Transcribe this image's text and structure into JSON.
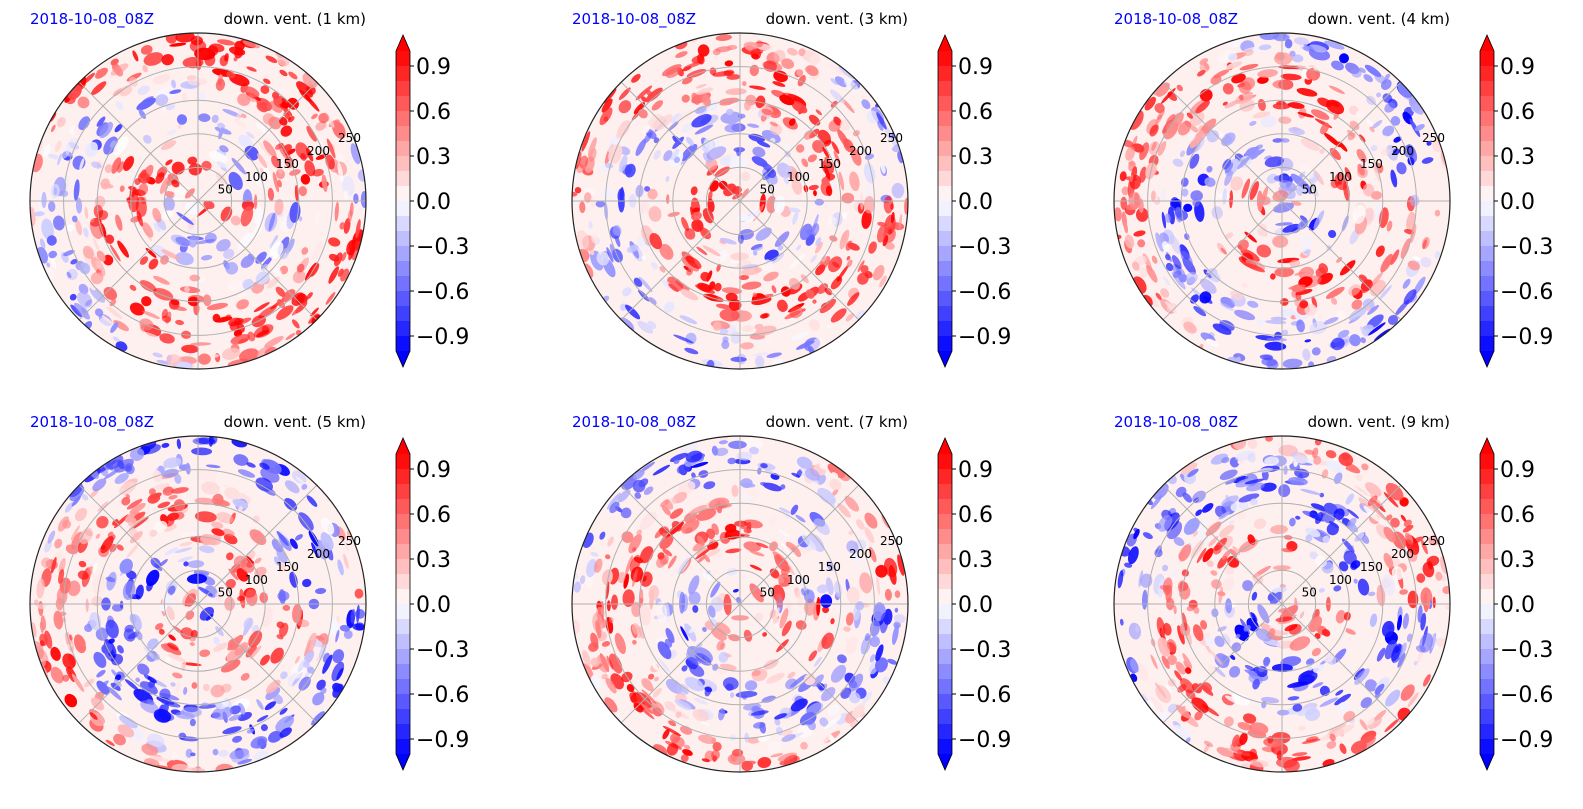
{
  "chart_data": [
    {
      "type": "heatmap",
      "date_label": "2018-10-08_08Z",
      "variable_label": "down. vent. (1 km)",
      "radial_ticks": [
        "50",
        "100",
        "150",
        "200",
        "250"
      ],
      "colorbar_ticks": [
        "0.9",
        "0.6",
        "0.3",
        "0.0",
        "−0.3",
        "−0.6",
        "−0.9"
      ],
      "colorbar_range": [
        -1.0,
        1.0
      ],
      "colormap": "bwr",
      "colorbar_extend": "both"
    },
    {
      "type": "heatmap",
      "date_label": "2018-10-08_08Z",
      "variable_label": "down. vent. (3 km)",
      "radial_ticks": [
        "50",
        "100",
        "150",
        "200",
        "250"
      ],
      "colorbar_ticks": [
        "0.9",
        "0.6",
        "0.3",
        "0.0",
        "−0.3",
        "−0.6",
        "−0.9"
      ],
      "colorbar_range": [
        -1.0,
        1.0
      ],
      "colormap": "bwr",
      "colorbar_extend": "both"
    },
    {
      "type": "heatmap",
      "date_label": "2018-10-08_08Z",
      "variable_label": "down. vent. (4 km)",
      "radial_ticks": [
        "50",
        "100",
        "150",
        "200",
        "250"
      ],
      "colorbar_ticks": [
        "0.9",
        "0.6",
        "0.3",
        "0.0",
        "−0.3",
        "−0.6",
        "−0.9"
      ],
      "colorbar_range": [
        -1.0,
        1.0
      ],
      "colormap": "bwr",
      "colorbar_extend": "both"
    },
    {
      "type": "heatmap",
      "date_label": "2018-10-08_08Z",
      "variable_label": "down. vent. (5 km)",
      "radial_ticks": [
        "50",
        "100",
        "150",
        "200",
        "250"
      ],
      "colorbar_ticks": [
        "0.9",
        "0.6",
        "0.3",
        "0.0",
        "−0.3",
        "−0.6",
        "−0.9"
      ],
      "colorbar_range": [
        -1.0,
        1.0
      ],
      "colormap": "bwr",
      "colorbar_extend": "both"
    },
    {
      "type": "heatmap",
      "date_label": "2018-10-08_08Z",
      "variable_label": "down. vent. (7 km)",
      "radial_ticks": [
        "50",
        "100",
        "150",
        "200",
        "250"
      ],
      "colorbar_ticks": [
        "0.9",
        "0.6",
        "0.3",
        "0.0",
        "−0.3",
        "−0.6",
        "−0.9"
      ],
      "colorbar_range": [
        -1.0,
        1.0
      ],
      "colormap": "bwr",
      "colorbar_extend": "both"
    },
    {
      "type": "heatmap",
      "date_label": "2018-10-08_08Z",
      "variable_label": "down. vent. (9 km)",
      "radial_ticks": [
        "50",
        "100",
        "150",
        "200",
        "250"
      ],
      "colorbar_ticks": [
        "0.9",
        "0.6",
        "0.3",
        "0.0",
        "−0.3",
        "−0.6",
        "−0.9"
      ],
      "colorbar_range": [
        -1.0,
        1.0
      ],
      "colormap": "bwr",
      "colorbar_extend": "both"
    }
  ],
  "colors": {
    "date_label": "#0000ff",
    "positive": "#ff0000",
    "negative": "#0000ff",
    "neutral": "#ffffff",
    "grid": "#b0b0b0"
  }
}
